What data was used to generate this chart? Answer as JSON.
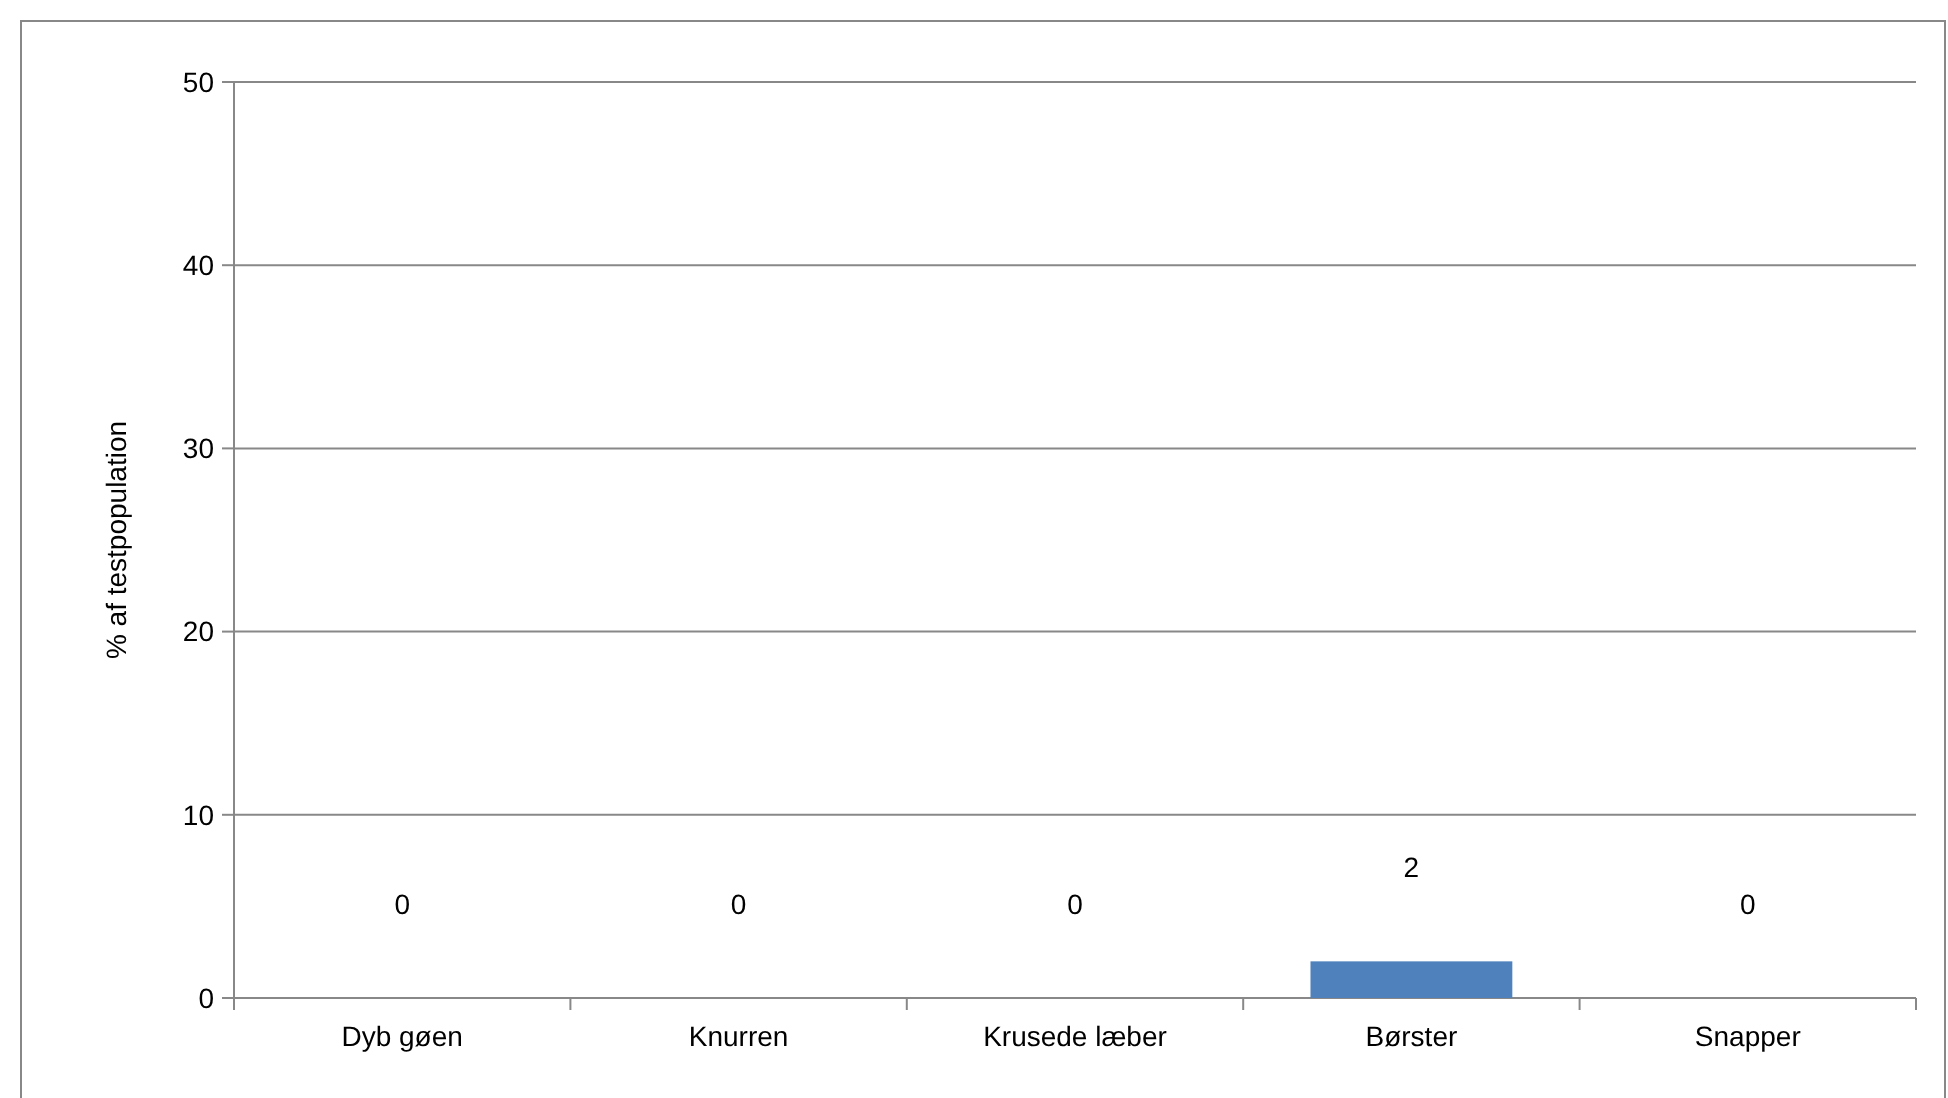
{
  "chart_data": {
    "type": "bar",
    "ylabel": "% af testpopulation",
    "categories": [
      "Dyb gøen",
      "Knurren",
      "Krusede læber",
      "Børster",
      "Snapper"
    ],
    "values": [
      0,
      0,
      0,
      2,
      0
    ],
    "color": "#4f81bd",
    "ylim": [
      0,
      50
    ],
    "yticks": [
      0,
      10,
      20,
      30,
      40,
      50
    ],
    "grid": "y",
    "data_labels": true
  }
}
